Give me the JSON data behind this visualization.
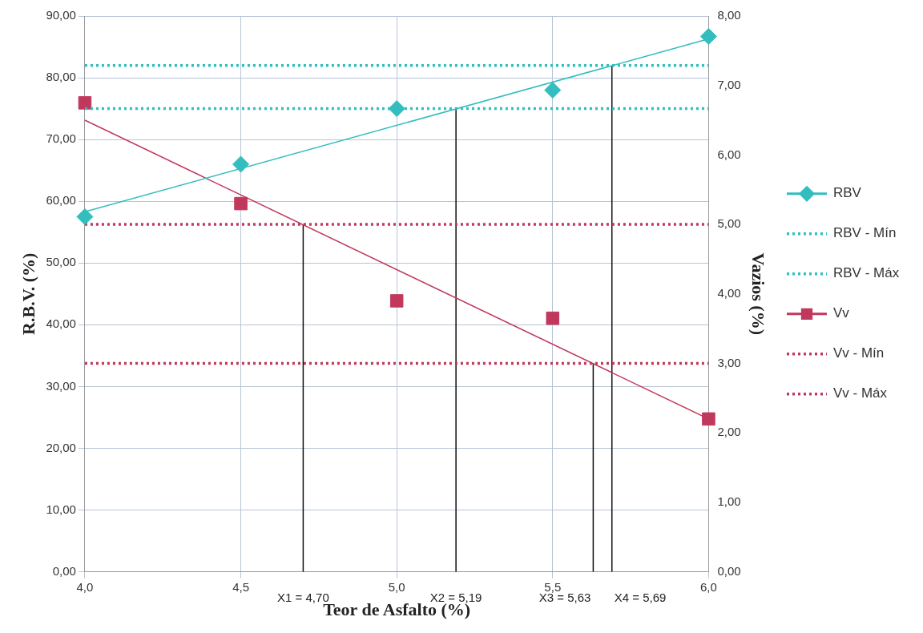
{
  "chart_data": {
    "type": "scatter",
    "xlabel": "Teor de Asfalto (%)",
    "ylabel": "R.B.V. (%)",
    "y2label": "Vazios (%)",
    "xlim": [
      4,
      6
    ],
    "xticks": [
      {
        "value": 4,
        "label": "4,0"
      },
      {
        "value": 4.5,
        "label": "4,5"
      },
      {
        "value": 5,
        "label": "5,0"
      },
      {
        "value": 5.5,
        "label": "5,5"
      },
      {
        "value": 6,
        "label": "6,0"
      }
    ],
    "ylim": [
      0,
      90
    ],
    "yticks": [
      {
        "value": 0,
        "label": "0,00"
      },
      {
        "value": 10,
        "label": "10,00"
      },
      {
        "value": 20,
        "label": "20,00"
      },
      {
        "value": 30,
        "label": "30,00"
      },
      {
        "value": 40,
        "label": "40,00"
      },
      {
        "value": 50,
        "label": "50,00"
      },
      {
        "value": 60,
        "label": "60,00"
      },
      {
        "value": 70,
        "label": "70,00"
      },
      {
        "value": 80,
        "label": "80,00"
      },
      {
        "value": 90,
        "label": "90,00"
      }
    ],
    "y2lim": [
      0,
      8
    ],
    "y2ticks": [
      {
        "value": 0,
        "label": "0,00"
      },
      {
        "value": 1,
        "label": "1,00"
      },
      {
        "value": 2,
        "label": "2,00"
      },
      {
        "value": 3,
        "label": "3,00"
      },
      {
        "value": 4,
        "label": "4,00"
      },
      {
        "value": 5,
        "label": "5,00"
      },
      {
        "value": 6,
        "label": "6,00"
      },
      {
        "value": 7,
        "label": "7,00"
      },
      {
        "value": 8,
        "label": "8,00"
      }
    ],
    "grid": true,
    "legend": "right",
    "series": [
      {
        "name": "RBV",
        "marker": "diamond",
        "color": "#33bdbf",
        "x": [
          4,
          4.5,
          5,
          5.5,
          6
        ],
        "values": [
          57.5,
          66,
          75,
          78,
          86.7
        ]
      },
      {
        "type": "line",
        "marker": "none",
        "line_style": "solid",
        "color": "#33bdbf",
        "x": [
          4,
          6
        ],
        "values": [
          58.3,
          86.3
        ]
      },
      {
        "name": "RBV - Mín",
        "type": "line",
        "marker": "none",
        "line_style": "dotted",
        "color": "#33bdbf",
        "x": [
          4,
          6
        ],
        "values": [
          75,
          75
        ]
      },
      {
        "name": "RBV - Máx",
        "type": "line",
        "marker": "none",
        "line_style": "dotted",
        "color": "#33bdbf",
        "x": [
          4,
          6
        ],
        "values": [
          82,
          82
        ]
      },
      {
        "name": "Vv",
        "marker": "square",
        "axis": "y2",
        "color": "#c0395c",
        "x": [
          4,
          4.5,
          5,
          5.5,
          6
        ],
        "values": [
          6.75,
          5.3,
          3.9,
          3.65,
          2.2
        ]
      },
      {
        "type": "line",
        "marker": "none",
        "line_style": "solid",
        "axis": "y2",
        "color": "#c0395c",
        "x": [
          4,
          6
        ],
        "values": [
          6.5,
          2.2
        ]
      },
      {
        "name": "Vv - Mín",
        "type": "line",
        "marker": "none",
        "line_style": "dotted",
        "axis": "y2",
        "color": "#c0395c",
        "x": [
          4,
          6
        ],
        "values": [
          3,
          3
        ]
      },
      {
        "name": "Vv - Máx",
        "type": "line",
        "marker": "none",
        "line_style": "dotted",
        "axis": "y2",
        "color": "#c0395c",
        "x": [
          4,
          6
        ],
        "values": [
          5,
          5
        ]
      },
      {
        "type": "line",
        "marker": "none",
        "line_style": "solid",
        "axis": "y2",
        "color": "#111111",
        "x": [
          4.7,
          4.7
        ],
        "values": [
          0,
          5
        ]
      },
      {
        "type": "line",
        "marker": "none",
        "line_style": "solid",
        "color": "#111111",
        "x": [
          5.19,
          5.19
        ],
        "values": [
          0,
          75
        ]
      },
      {
        "type": "line",
        "marker": "none",
        "line_style": "solid",
        "axis": "y2",
        "color": "#111111",
        "x": [
          5.63,
          5.63
        ],
        "values": [
          0,
          3
        ]
      },
      {
        "type": "line",
        "marker": "none",
        "line_style": "solid",
        "color": "#111111",
        "x": [
          5.69,
          5.69
        ],
        "values": [
          0,
          82
        ]
      }
    ],
    "annotations": [
      {
        "text": "X1 = 4,70",
        "x": 4.7,
        "y": 0
      },
      {
        "text": "X2 = 5,19",
        "x": 5.19,
        "y": 0
      },
      {
        "text": "X3 = 5,63",
        "x": 5.63,
        "y": 0
      },
      {
        "text": "X4 = 5,69",
        "x": 5.69,
        "y": 0
      }
    ]
  }
}
